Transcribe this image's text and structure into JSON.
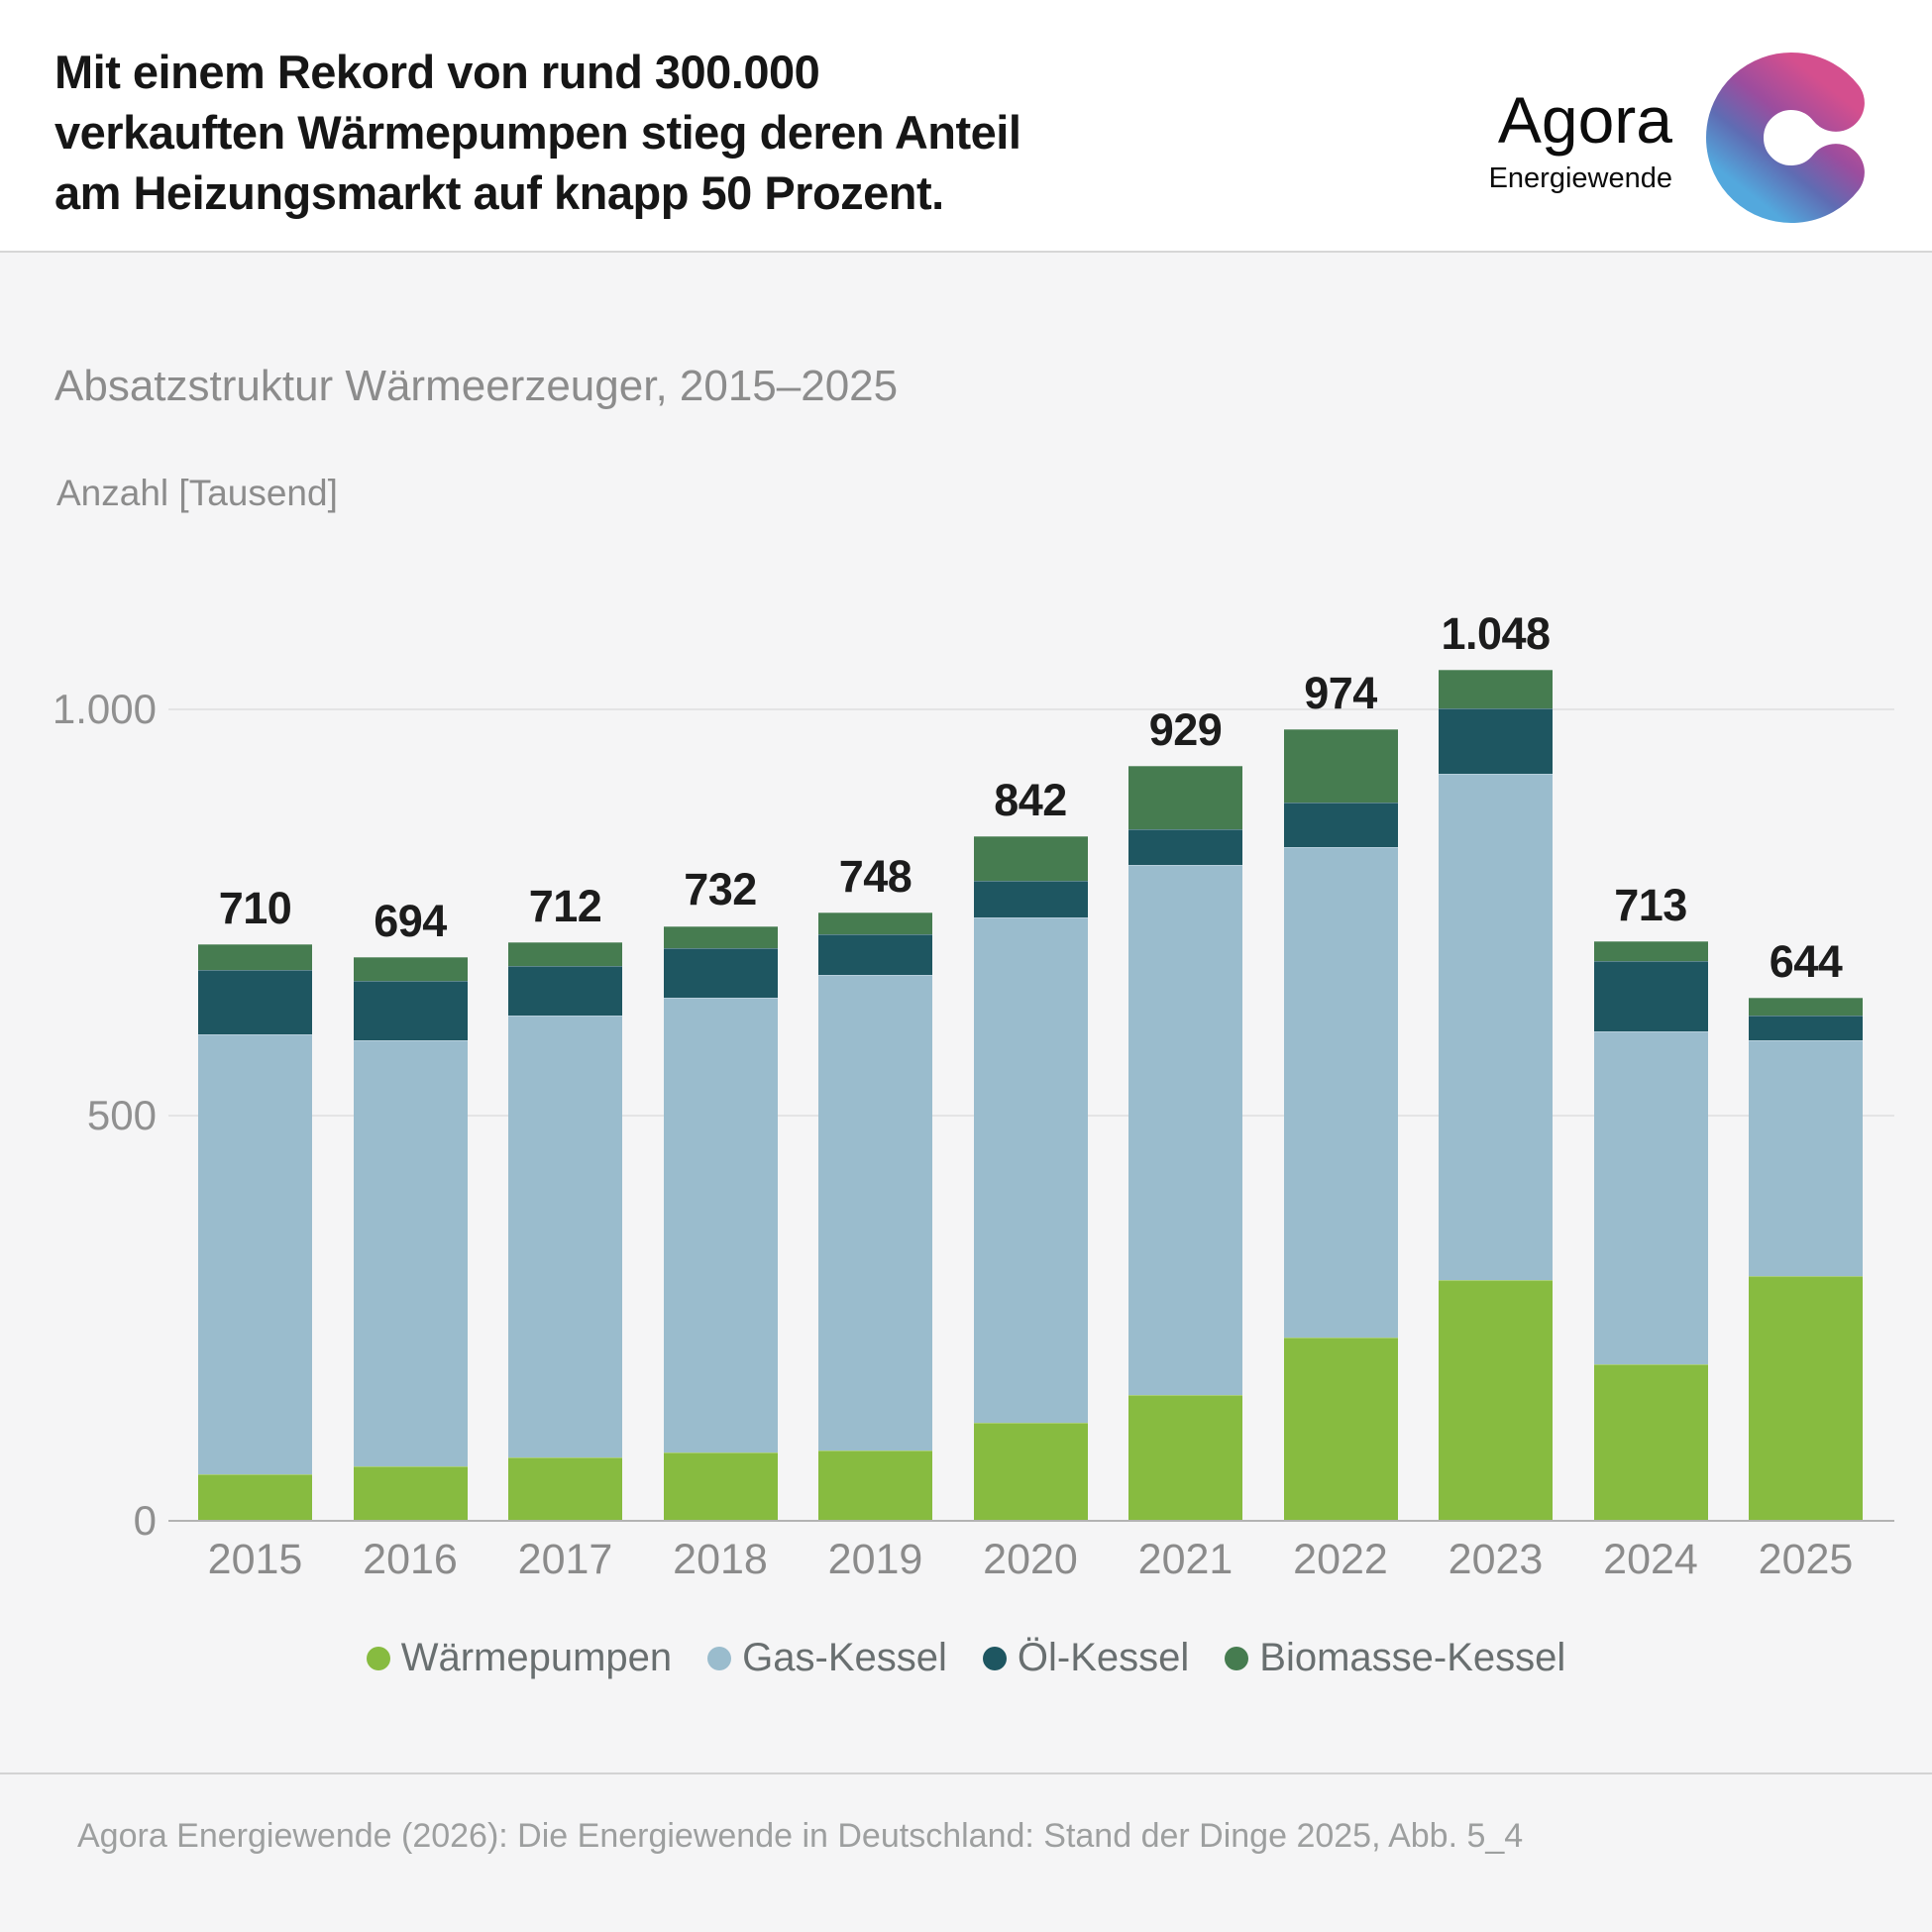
{
  "header": {
    "title_lines": [
      "Mit einem Rekord von rund 300.000",
      "verkauften Wärmepumpen stieg deren Anteil",
      "am Heizungsmarkt auf knapp 50 Prozent."
    ],
    "logo": {
      "name": "Agora",
      "subname": "Energiewende"
    }
  },
  "chart": {
    "subtitle": "Absatzstruktur Wärmeerzeuger, 2015–2025",
    "unit_label": "Anzahl [Tausend]"
  },
  "chart_data": {
    "type": "bar",
    "stacked": true,
    "title": "Absatzstruktur Wärmeerzeuger, 2015–2025",
    "xlabel": "",
    "ylabel": "Anzahl [Tausend]",
    "ylim": [
      0,
      1120
    ],
    "grid": true,
    "legend_position": "bottom",
    "categories": [
      "2015",
      "2016",
      "2017",
      "2018",
      "2019",
      "2020",
      "2021",
      "2022",
      "2023",
      "2024",
      "2025"
    ],
    "series": [
      {
        "name": "Wärmepumpen",
        "key": "waermepumpen",
        "color": "#87BB40",
        "values": [
          56,
          66,
          77,
          83,
          86,
          120,
          154,
          225,
          295,
          192,
          300
        ]
      },
      {
        "name": "Gas-Kessel",
        "key": "gas-kessel",
        "color": "#9ABCCD",
        "values": [
          542,
          525,
          545,
          561,
          586,
          622,
          653,
          604,
          624,
          410,
          291
        ]
      },
      {
        "name": "Öl-Kessel",
        "key": "oel-kessel",
        "color": "#1E5661",
        "values": [
          80,
          73,
          61,
          60,
          50,
          45,
          44,
          55,
          81,
          87,
          30
        ]
      },
      {
        "name": "Biomasse-Kessel",
        "key": "biomasse-kessel",
        "color": "#467C50",
        "values": [
          32,
          30,
          29,
          28,
          26,
          55,
          78,
          90,
          48,
          24,
          23
        ]
      }
    ],
    "totals": [
      710,
      694,
      712,
      732,
      748,
      842,
      929,
      974,
      1048,
      713,
      644
    ],
    "total_labels": [
      "710",
      "694",
      "712",
      "732",
      "748",
      "842",
      "929",
      "974",
      "1.048",
      "713",
      "644"
    ],
    "y_ticks": [
      {
        "value": 0,
        "label": "0"
      },
      {
        "value": 500,
        "label": "500"
      },
      {
        "value": 1000,
        "label": "1.000"
      }
    ]
  },
  "legend_note": "legend items mirror chart_data.series",
  "footer": {
    "source": "Agora Energiewende (2026): Die Energiewende in Deutschland: Stand der Dinge 2025, Abb. 5_4"
  },
  "colors": {
    "background_top": "#ffffff",
    "background_chart": "#f5f5f6",
    "title_text": "#161616",
    "subtitle_text": "#8c8c8c",
    "axis_text": "#909090",
    "legend_text": "#696f70",
    "footer_text": "#9d9f9f",
    "logo_gradient": [
      "#D44F8E",
      "#9B4D9E",
      "#5F6CB3",
      "#53A8DD"
    ]
  }
}
